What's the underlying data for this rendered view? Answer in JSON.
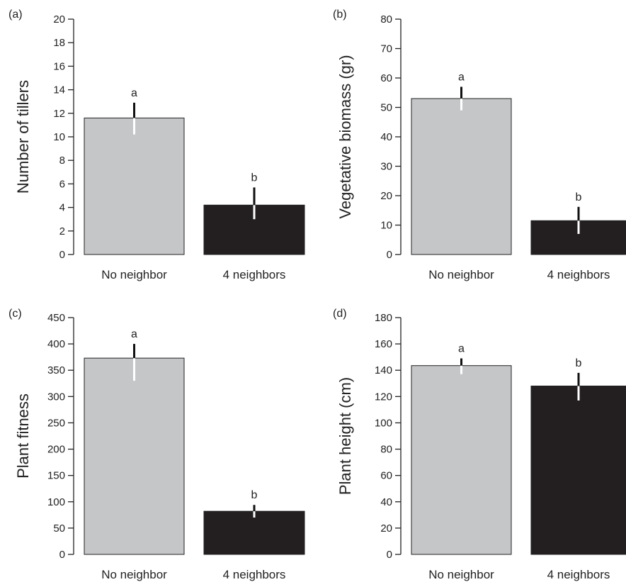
{
  "colors": {
    "no_neighbor_bar": "#c5c6c8",
    "four_neighbors_bar": "#231f20",
    "axis": "#222222",
    "error_on_light": "#ffffff",
    "error_on_dark": "#ffffff",
    "error_above": "#111111"
  },
  "chart_data": [
    {
      "panel": "(a)",
      "type": "bar",
      "categories": [
        "No neighbor",
        "4 neighbors"
      ],
      "values": [
        11.6,
        4.2
      ],
      "errors": [
        [
          10.2,
          12.9
        ],
        [
          3.0,
          5.7
        ]
      ],
      "significance": [
        "a",
        "b"
      ],
      "ylabel": "Number of tillers",
      "ylim": [
        0,
        20
      ],
      "yticks": [
        0,
        2,
        4,
        6,
        8,
        10,
        12,
        14,
        16,
        18,
        20
      ],
      "grid": false
    },
    {
      "panel": "(b)",
      "type": "bar",
      "categories": [
        "No neighbor",
        "4 neighbors"
      ],
      "values": [
        53,
        11.5
      ],
      "errors": [
        [
          49,
          57
        ],
        [
          7,
          16.2
        ]
      ],
      "significance": [
        "a",
        "b"
      ],
      "ylabel": "Vegetative biomass (gr)",
      "ylim": [
        0,
        80
      ],
      "yticks": [
        0,
        10,
        20,
        30,
        40,
        50,
        60,
        70,
        80
      ],
      "grid": false
    },
    {
      "panel": "(c)",
      "type": "bar",
      "categories": [
        "No neighbor",
        "4 neighbors"
      ],
      "values": [
        373,
        82
      ],
      "errors": [
        [
          330,
          400
        ],
        [
          70,
          94
        ]
      ],
      "significance": [
        "a",
        "b"
      ],
      "ylabel": "Plant fitness",
      "ylim": [
        0,
        450
      ],
      "yticks": [
        0,
        50,
        100,
        150,
        200,
        250,
        300,
        350,
        400,
        450
      ],
      "grid": false
    },
    {
      "panel": "(d)",
      "type": "bar",
      "categories": [
        "No neighbor",
        "4 neighbors"
      ],
      "values": [
        143.5,
        128
      ],
      "errors": [
        [
          137,
          149
        ],
        [
          117,
          138
        ]
      ],
      "significance": [
        "a",
        "b"
      ],
      "ylabel": "Plant height (cm)",
      "ylim": [
        0,
        180
      ],
      "yticks": [
        0,
        20,
        40,
        60,
        80,
        100,
        120,
        140,
        160,
        180
      ],
      "grid": false
    }
  ]
}
